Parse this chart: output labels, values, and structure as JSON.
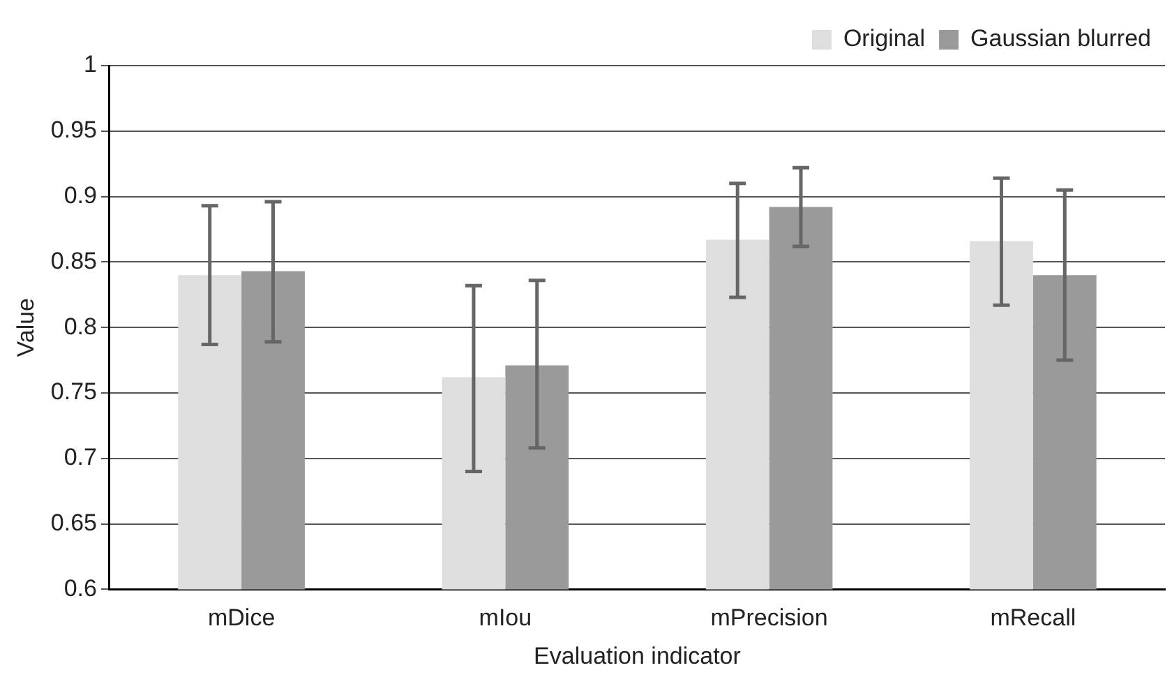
{
  "chart_data": {
    "type": "bar",
    "xlabel": "Evaluation indicator",
    "ylabel": "Value",
    "categories": [
      "mDice",
      "mIou",
      "mPrecision",
      "mRecall"
    ],
    "series": [
      {
        "name": "Original",
        "color": "#dedede",
        "values": [
          0.84,
          0.762,
          0.867,
          0.866
        ],
        "errors": [
          [
            0.787,
            0.893
          ],
          [
            0.69,
            0.832
          ],
          [
            0.823,
            0.91
          ],
          [
            0.817,
            0.914
          ]
        ]
      },
      {
        "name": "Gaussian blurred",
        "color": "#9a9a9a",
        "values": [
          0.843,
          0.771,
          0.892,
          0.84
        ],
        "errors": [
          [
            0.789,
            0.896
          ],
          [
            0.708,
            0.836
          ],
          [
            0.862,
            0.922
          ],
          [
            0.775,
            0.905
          ]
        ]
      }
    ],
    "ylim": [
      0.6,
      1
    ],
    "yticks": [
      0.6,
      0.65,
      0.7,
      0.75,
      0.8,
      0.85,
      0.9,
      0.95,
      1
    ],
    "grid": "y",
    "legend": "top right"
  }
}
